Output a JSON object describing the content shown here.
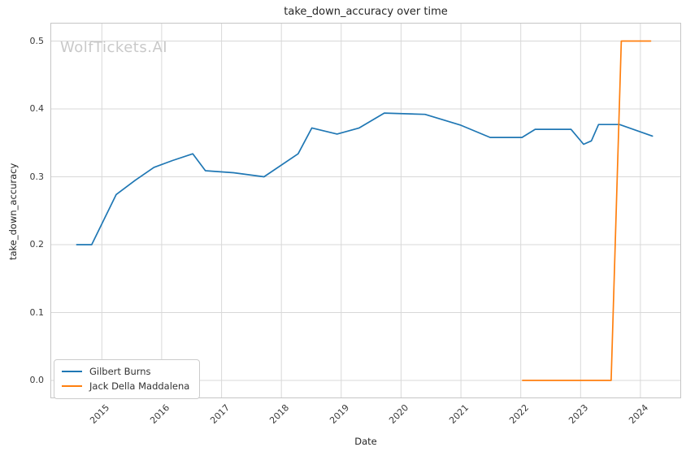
{
  "title": "take_down_accuracy over time",
  "watermark": "WolfTickets.AI",
  "xlabel": "Date",
  "ylabel": "take_down_accuracy",
  "colors": {
    "series_blue": "#1f77b4",
    "series_orange": "#ff7f0e",
    "grid": "#d8d8d8",
    "spine": "#c6c6c6",
    "watermark": "#c9c9c9"
  },
  "legend": [
    {
      "label": "Gilbert Burns",
      "color": "#1f77b4"
    },
    {
      "label": "Jack Della Maddalena",
      "color": "#ff7f0e"
    }
  ],
  "chart_data": {
    "type": "line",
    "title": "take_down_accuracy over time",
    "xlabel": "Date",
    "ylabel": "take_down_accuracy",
    "grid": true,
    "legend_position": "lower left",
    "xlim": [
      2014.14,
      2024.68
    ],
    "ylim": [
      -0.0263,
      0.527
    ],
    "x_ticks": [
      2015,
      2016,
      2017,
      2018,
      2019,
      2020,
      2021,
      2022,
      2023,
      2024
    ],
    "x_tick_labels": [
      "2015",
      "2016",
      "2017",
      "2018",
      "2019",
      "2020",
      "2021",
      "2022",
      "2023",
      "2024"
    ],
    "y_ticks": [
      0.0,
      0.1,
      0.2,
      0.3,
      0.4,
      0.5
    ],
    "y_tick_labels": [
      "0.0",
      "0.1",
      "0.2",
      "0.3",
      "0.4",
      "0.5"
    ],
    "series": [
      {
        "name": "Gilbert Burns",
        "color": "#1f77b4",
        "points": [
          [
            2014.58,
            0.2
          ],
          [
            2014.83,
            0.2
          ],
          [
            2015.24,
            0.274
          ],
          [
            2015.56,
            0.295
          ],
          [
            2015.87,
            0.314
          ],
          [
            2016.18,
            0.324
          ],
          [
            2016.52,
            0.334
          ],
          [
            2016.73,
            0.309
          ],
          [
            2017.2,
            0.306
          ],
          [
            2017.71,
            0.3
          ],
          [
            2018.28,
            0.334
          ],
          [
            2018.51,
            0.372
          ],
          [
            2018.93,
            0.363
          ],
          [
            2019.3,
            0.372
          ],
          [
            2019.72,
            0.394
          ],
          [
            2020.4,
            0.392
          ],
          [
            2021.0,
            0.376
          ],
          [
            2021.49,
            0.358
          ],
          [
            2022.02,
            0.358
          ],
          [
            2022.24,
            0.37
          ],
          [
            2022.84,
            0.37
          ],
          [
            2023.05,
            0.348
          ],
          [
            2023.18,
            0.353
          ],
          [
            2023.3,
            0.377
          ],
          [
            2023.65,
            0.377
          ],
          [
            2024.2,
            0.36
          ]
        ]
      },
      {
        "name": "Jack Della Maddalena",
        "color": "#ff7f0e",
        "points": [
          [
            2022.03,
            0.0
          ],
          [
            2023.51,
            0.0
          ],
          [
            2023.68,
            0.5
          ],
          [
            2024.17,
            0.5
          ]
        ]
      }
    ]
  }
}
